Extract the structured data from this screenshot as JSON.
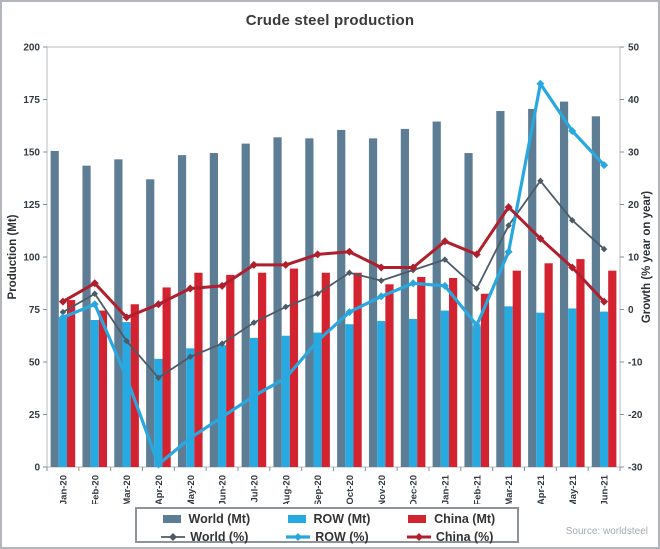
{
  "chart_data": {
    "type": "combo-bar-line",
    "title": "Crude steel production",
    "source": "Source: worldsteel",
    "categories": [
      "Jan-20",
      "Feb-20",
      "Mar-20",
      "Apr-20",
      "May-20",
      "Jun-20",
      "Jul-20",
      "Aug-20",
      "Sep-20",
      "Oct-20",
      "Nov-20",
      "Dec-20",
      "Jan-21",
      "Feb-21",
      "Mar-21",
      "Apr-21",
      "May-21",
      "Jun-21"
    ],
    "left_axis": {
      "label": "Production (Mt)",
      "min": 0,
      "max": 200,
      "step": 25
    },
    "right_axis": {
      "label": "Growth (% year on year)",
      "min": -30,
      "max": 50,
      "step": 10
    },
    "legend_position": "bottom",
    "grid": "off",
    "series": [
      {
        "name": "World (Mt)",
        "type": "bar",
        "axis": "left",
        "color": "#5d7d95",
        "values": [
          150.5,
          143.5,
          146.5,
          137,
          148.5,
          149.5,
          154,
          157,
          156.5,
          160.5,
          156.5,
          161,
          164.5,
          149.5,
          169.5,
          170.5,
          174,
          167
        ]
      },
      {
        "name": "ROW (Mt)",
        "type": "bar",
        "axis": "left",
        "color": "#27a9e1",
        "values": [
          71,
          70,
          69,
          51.5,
          56.5,
          58,
          61.5,
          62.5,
          64,
          68,
          69.5,
          70.5,
          74.5,
          67,
          76.5,
          73.5,
          75.5,
          74
        ]
      },
      {
        "name": "China (Mt)",
        "type": "bar",
        "axis": "left",
        "color": "#d32230",
        "values": [
          79.5,
          74.5,
          77.5,
          85.5,
          92.5,
          91.5,
          92.5,
          94.5,
          92.5,
          92.5,
          87,
          90.5,
          90,
          82.5,
          93.5,
          97,
          99,
          93.5
        ]
      },
      {
        "name": "World (%)",
        "type": "line",
        "axis": "right",
        "color": "#4e5b66",
        "marker": "diamond",
        "line_width": 1.8,
        "values": [
          -0.5,
          3,
          -6,
          -13,
          -9,
          -6.5,
          -2.5,
          0.5,
          3,
          7,
          5.5,
          7.5,
          9.5,
          4,
          16,
          24.5,
          17,
          11.5
        ]
      },
      {
        "name": "ROW (%)",
        "type": "line",
        "axis": "right",
        "color": "#29a8e0",
        "marker": "diamond",
        "line_width": 3.2,
        "values": [
          -1.5,
          1,
          -13,
          -29.5,
          -24.5,
          -20.5,
          -16.5,
          -13,
          -6,
          -0.5,
          2.5,
          5,
          4.5,
          -3,
          11,
          43,
          34,
          27.5
        ]
      },
      {
        "name": "China (%)",
        "type": "line",
        "axis": "right",
        "color": "#b01f2e",
        "marker": "diamond",
        "line_width": 3,
        "values": [
          1.5,
          5,
          -1.5,
          1,
          4,
          4.5,
          8.5,
          8.5,
          10.5,
          11,
          8,
          8,
          13,
          10.5,
          19.5,
          13.5,
          8,
          1.5
        ]
      }
    ]
  }
}
